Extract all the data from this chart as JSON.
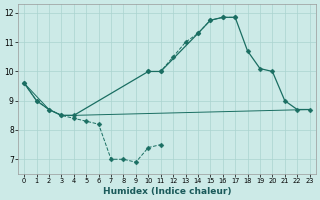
{
  "background_color": "#cceae7",
  "grid_color": "#aad4d0",
  "line_color": "#1a6e62",
  "xlabel": "Humidex (Indice chaleur)",
  "xlim": [
    -0.5,
    23.5
  ],
  "ylim": [
    6.5,
    12.3
  ],
  "yticks": [
    7,
    8,
    9,
    10,
    11,
    12
  ],
  "xticks": [
    0,
    1,
    2,
    3,
    4,
    5,
    6,
    7,
    8,
    9,
    10,
    11,
    12,
    13,
    14,
    15,
    16,
    17,
    18,
    19,
    20,
    21,
    22,
    23
  ],
  "curve1_x": [
    0,
    1,
    2,
    3,
    4,
    5,
    6,
    7,
    8,
    9,
    10,
    11
  ],
  "curve1_y": [
    9.6,
    9.0,
    8.7,
    8.5,
    8.4,
    8.3,
    8.2,
    7.0,
    7.0,
    6.9,
    7.4,
    7.5
  ],
  "curve2_x": [
    10,
    11,
    12,
    13,
    14,
    15,
    16,
    17
  ],
  "curve2_y": [
    10.0,
    10.0,
    10.5,
    11.0,
    11.3,
    11.75,
    11.85,
    11.85
  ],
  "curve3_x": [
    0,
    1,
    2,
    3,
    4,
    10,
    11,
    14,
    15,
    16,
    17,
    18,
    19,
    20,
    21,
    22,
    23
  ],
  "curve3_y": [
    9.6,
    9.0,
    8.7,
    8.5,
    8.5,
    10.0,
    10.0,
    11.3,
    11.75,
    11.85,
    11.85,
    10.7,
    10.1,
    10.0,
    9.0,
    8.7,
    8.7
  ],
  "curve4_x": [
    0,
    2,
    3,
    4,
    23
  ],
  "curve4_y": [
    9.6,
    8.7,
    8.5,
    8.5,
    8.7
  ],
  "marker_size": 2.5
}
